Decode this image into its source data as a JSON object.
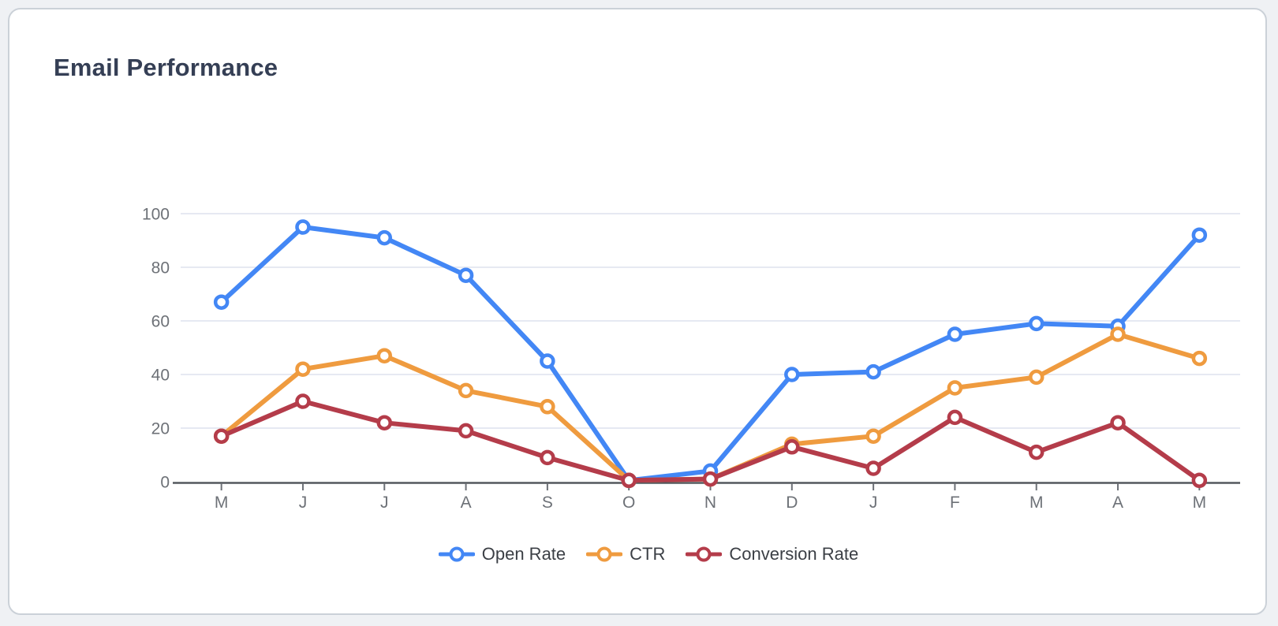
{
  "card": {
    "title": "Email Performance"
  },
  "chart_data": {
    "type": "line",
    "title": "Email Performance",
    "x_labels": [
      "M",
      "J",
      "J",
      "A",
      "S",
      "O",
      "N",
      "D",
      "J",
      "F",
      "M",
      "A",
      "M"
    ],
    "y_ticks": [
      0,
      20,
      40,
      60,
      80,
      100
    ],
    "ylim": [
      0,
      100
    ],
    "grid": true,
    "legend_position": "bottom",
    "series": [
      {
        "name": "Open Rate",
        "color": "#4387f5",
        "values": [
          67,
          95,
          91,
          77,
          45,
          0.5,
          4,
          40,
          41,
          55,
          59,
          58,
          92
        ]
      },
      {
        "name": "CTR",
        "color": "#ef9b3f",
        "values": [
          17,
          42,
          47,
          34,
          28,
          0.5,
          1,
          14,
          17,
          35,
          39,
          55,
          46
        ]
      },
      {
        "name": "Conversion Rate",
        "color": "#b43c4a",
        "values": [
          17,
          30,
          22,
          19,
          9,
          0.5,
          1,
          13,
          5,
          24,
          11,
          22,
          0.5
        ]
      }
    ],
    "style": {
      "grid_color": "#e6e9f2",
      "axis_color": "#54585d",
      "tick_label_color": "#6d7177",
      "title_color": "#353f55",
      "marker_fill": "#ffffff"
    }
  }
}
